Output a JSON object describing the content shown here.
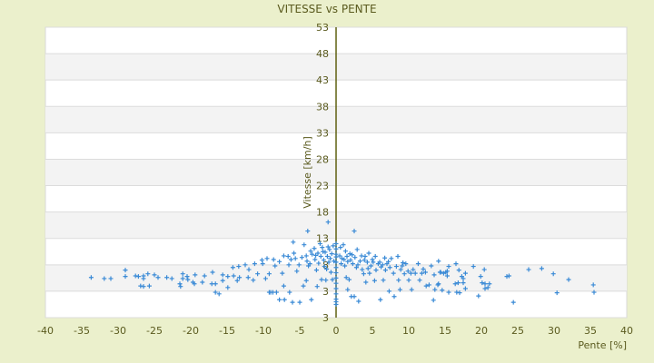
{
  "chart_data": {
    "type": "scatter",
    "title": "VITESSE vs PENTE",
    "xlabel": "Pente [%]",
    "ylabel": "Vitesse [km/h]",
    "xlim": [
      -40,
      40
    ],
    "ylim": [
      -2,
      53
    ],
    "x_ticks": [
      "-40",
      "-35",
      "-30",
      "-25",
      "-20",
      "-15",
      "-10",
      "-5",
      "0",
      "5",
      "10",
      "15",
      "20",
      "25",
      "30",
      "35",
      "40"
    ],
    "y_ticks": [
      "53",
      "48",
      "43",
      "38",
      "33",
      "28",
      "23",
      "18",
      "13",
      "8",
      "3",
      "3"
    ],
    "grid": true,
    "colors": {
      "background": "#ebf0cc",
      "plot": "#ffffff",
      "band": "#f3f3f3",
      "marker": "#3a8ad6",
      "axis": "#5a5a1e"
    },
    "marker": "plus",
    "points": [
      [
        14.1,
        8.7
      ],
      [
        15.5,
        7.7
      ],
      [
        16.5,
        8.2
      ],
      [
        16.9,
        7.0
      ],
      [
        18.9,
        7.7
      ],
      [
        20.4,
        7.1
      ],
      [
        19.9,
        5.8
      ],
      [
        17.3,
        5.8
      ],
      [
        17.5,
        5.4
      ],
      [
        17.8,
        6.4
      ],
      [
        16.4,
        4.4
      ],
      [
        16.8,
        4.6
      ],
      [
        17.5,
        4.6
      ],
      [
        17.8,
        3.5
      ],
      [
        17.0,
        2.7
      ],
      [
        15.5,
        2.8
      ],
      [
        14.6,
        3.2
      ],
      [
        20.1,
        4.6
      ],
      [
        20.5,
        4.4
      ],
      [
        21.1,
        4.4
      ],
      [
        20.5,
        3.5
      ],
      [
        20.9,
        3.7
      ],
      [
        19.6,
        2.1
      ],
      [
        23.5,
        5.8
      ],
      [
        23.8,
        5.9
      ],
      [
        24.4,
        0.9
      ],
      [
        26.5,
        7.1
      ],
      [
        28.3,
        7.3
      ],
      [
        29.9,
        6.3
      ],
      [
        30.4,
        2.7
      ],
      [
        32.0,
        5.2
      ],
      [
        35.4,
        4.2
      ],
      [
        35.5,
        2.8
      ],
      [
        15.3,
        6.8
      ],
      [
        15.3,
        5.9
      ],
      [
        14.8,
        6.4
      ],
      [
        14.3,
        6.6
      ],
      [
        14.0,
        4.2
      ],
      [
        14.1,
        4.4
      ],
      [
        -33.7,
        5.6
      ],
      [
        -31.9,
        5.4
      ],
      [
        -31.0,
        5.4
      ],
      [
        -29.0,
        7.0
      ],
      [
        -29.0,
        5.8
      ],
      [
        -27.6,
        5.9
      ],
      [
        -27.2,
        5.8
      ],
      [
        -26.5,
        5.9
      ],
      [
        -26.5,
        5.4
      ],
      [
        -26.9,
        4.0
      ],
      [
        -26.5,
        3.9
      ],
      [
        -25.9,
        6.3
      ],
      [
        -25.7,
        4.0
      ],
      [
        -25.0,
        6.1
      ],
      [
        -24.5,
        5.6
      ],
      [
        -23.3,
        5.6
      ],
      [
        -22.6,
        5.4
      ],
      [
        -21.5,
        4.4
      ],
      [
        -21.4,
        3.9
      ],
      [
        -21.1,
        6.3
      ],
      [
        -21.1,
        5.4
      ],
      [
        -20.5,
        5.8
      ],
      [
        -20.4,
        5.2
      ],
      [
        -19.7,
        4.7
      ],
      [
        -19.5,
        4.4
      ],
      [
        -19.4,
        6.1
      ],
      [
        -18.4,
        4.7
      ],
      [
        -18.1,
        5.9
      ],
      [
        -17.0,
        6.6
      ],
      [
        -17.1,
        4.4
      ],
      [
        -16.6,
        4.4
      ],
      [
        -16.6,
        2.8
      ],
      [
        -16.1,
        2.5
      ],
      [
        -15.6,
        6.1
      ],
      [
        -15.6,
        5.0
      ],
      [
        -14.9,
        5.8
      ],
      [
        -14.9,
        3.7
      ],
      [
        -14.2,
        7.5
      ],
      [
        -14.1,
        5.9
      ],
      [
        -13.6,
        5.0
      ],
      [
        -13.4,
        7.7
      ],
      [
        -13.3,
        5.6
      ],
      [
        -12.5,
        8.0
      ],
      [
        -12.1,
        5.6
      ],
      [
        -12.0,
        7.1
      ],
      [
        -11.4,
        5.1
      ],
      [
        -11.2,
        8.2
      ],
      [
        -10.8,
        6.3
      ],
      [
        -10.2,
        8.9
      ],
      [
        -10.1,
        8.2
      ],
      [
        -9.7,
        5.4
      ],
      [
        -9.5,
        9.2
      ],
      [
        -9.2,
        6.3
      ],
      [
        -9.2,
        2.8
      ],
      [
        -9.0,
        2.8
      ],
      [
        -8.7,
        2.8
      ],
      [
        -8.6,
        9.0
      ],
      [
        -8.2,
        2.8
      ],
      [
        -8.4,
        7.8
      ],
      [
        -7.8,
        1.4
      ],
      [
        -7.2,
        9.7
      ],
      [
        -7.2,
        4.0
      ],
      [
        -7.1,
        1.4
      ],
      [
        -7.4,
        6.4
      ],
      [
        -6.6,
        9.6
      ],
      [
        -6.5,
        8.0
      ],
      [
        -6.4,
        2.8
      ],
      [
        -6.0,
        0.9
      ],
      [
        -5.9,
        12.3
      ],
      [
        -5.8,
        10.2
      ],
      [
        -5.6,
        9.2
      ],
      [
        -5.4,
        6.8
      ],
      [
        -5.1,
        8.0
      ],
      [
        -5.0,
        0.9
      ],
      [
        -4.5,
        4.0
      ],
      [
        -4.4,
        11.8
      ],
      [
        -4.1,
        9.7
      ],
      [
        -4.1,
        5.0
      ],
      [
        -4.0,
        8.7
      ],
      [
        -3.9,
        14.4
      ],
      [
        -3.8,
        7.8
      ],
      [
        -3.5,
        10.6
      ],
      [
        -3.4,
        1.4
      ],
      [
        -3.0,
        11.1
      ],
      [
        -2.9,
        9.0
      ],
      [
        -2.7,
        7.0
      ],
      [
        -2.6,
        3.9
      ],
      [
        -2.5,
        10.2
      ],
      [
        -2.4,
        8.3
      ],
      [
        -2.2,
        12.0
      ],
      [
        -2.1,
        9.6
      ],
      [
        -2.0,
        5.2
      ],
      [
        -1.9,
        11.3
      ],
      [
        -1.7,
        8.9
      ],
      [
        -1.6,
        7.7
      ],
      [
        -1.5,
        10.4
      ],
      [
        -1.4,
        5.1
      ],
      [
        -1.2,
        9.6
      ],
      [
        -1.1,
        16.1
      ],
      [
        -1.1,
        11.4
      ],
      [
        -1.0,
        8.5
      ],
      [
        -0.9,
        10.9
      ],
      [
        -0.8,
        9.2
      ],
      [
        -0.6,
        10.1
      ],
      [
        -0.5,
        5.2
      ],
      [
        -0.4,
        11.6
      ],
      [
        -0.3,
        8.7
      ],
      [
        -3.3,
        10.0
      ],
      [
        -2.8,
        9.8
      ],
      [
        -1.8,
        10.5
      ],
      [
        -4.7,
        9.4
      ],
      [
        -6.2,
        9.0
      ],
      [
        -7.8,
        8.6
      ],
      [
        -3.6,
        8.2
      ],
      [
        -1.3,
        7.2
      ],
      [
        -0.7,
        6.6
      ],
      [
        0,
        12.0
      ],
      [
        0,
        11.0
      ],
      [
        0,
        10.0
      ],
      [
        0,
        9.5
      ],
      [
        0,
        8.5
      ],
      [
        0,
        7.5
      ],
      [
        0,
        6.5
      ],
      [
        0,
        5.5
      ],
      [
        0,
        4.5
      ],
      [
        0,
        3.5
      ],
      [
        0,
        2.5
      ],
      [
        0,
        1.5
      ],
      [
        0,
        1.0
      ],
      [
        0,
        0.5
      ],
      [
        0.5,
        9.7
      ],
      [
        0.6,
        11.3
      ],
      [
        0.8,
        9.2
      ],
      [
        1.0,
        11.8
      ],
      [
        1.2,
        7.8
      ],
      [
        1.3,
        10.6
      ],
      [
        1.4,
        5.6
      ],
      [
        1.5,
        9.6
      ],
      [
        1.6,
        3.3
      ],
      [
        1.8,
        5.2
      ],
      [
        1.9,
        10.1
      ],
      [
        2.0,
        8.9
      ],
      [
        2.1,
        2.0
      ],
      [
        2.3,
        8.2
      ],
      [
        2.5,
        14.4
      ],
      [
        2.5,
        2.0
      ],
      [
        2.6,
        9.4
      ],
      [
        2.8,
        7.5
      ],
      [
        2.9,
        10.9
      ],
      [
        3.1,
        1.1
      ],
      [
        3.3,
        8.7
      ],
      [
        3.5,
        9.7
      ],
      [
        3.6,
        7.1
      ],
      [
        3.8,
        6.3
      ],
      [
        4.0,
        9.6
      ],
      [
        4.1,
        4.7
      ],
      [
        4.3,
        8.5
      ],
      [
        4.5,
        10.2
      ],
      [
        4.6,
        6.4
      ],
      [
        4.8,
        7.8
      ],
      [
        5.1,
        8.5
      ],
      [
        5.3,
        5.0
      ],
      [
        5.4,
        9.6
      ],
      [
        5.5,
        7.0
      ],
      [
        5.8,
        8.2
      ],
      [
        6.0,
        8.5
      ],
      [
        6.1,
        1.4
      ],
      [
        6.4,
        8.0
      ],
      [
        6.5,
        5.1
      ],
      [
        6.8,
        7.0
      ],
      [
        7.0,
        8.2
      ],
      [
        7.3,
        3.0
      ],
      [
        7.4,
        7.5
      ],
      [
        7.6,
        9.2
      ],
      [
        7.9,
        6.4
      ],
      [
        8.0,
        2.0
      ],
      [
        8.3,
        7.7
      ],
      [
        8.5,
        9.6
      ],
      [
        8.6,
        5.1
      ],
      [
        8.8,
        3.3
      ],
      [
        8.9,
        7.1
      ],
      [
        9.1,
        7.8
      ],
      [
        9.4,
        6.3
      ],
      [
        9.6,
        8.2
      ],
      [
        9.9,
        6.8
      ],
      [
        10.0,
        5.1
      ],
      [
        10.3,
        6.4
      ],
      [
        10.4,
        3.3
      ],
      [
        10.6,
        7.1
      ],
      [
        10.9,
        6.4
      ],
      [
        11.3,
        8.2
      ],
      [
        11.5,
        5.1
      ],
      [
        11.8,
        6.4
      ],
      [
        12.3,
        6.6
      ],
      [
        12.4,
        4.0
      ],
      [
        12.8,
        4.2
      ],
      [
        13.1,
        7.8
      ],
      [
        13.4,
        1.3
      ],
      [
        13.5,
        6.1
      ],
      [
        13.6,
        3.3
      ],
      [
        14.4,
        6.6
      ],
      [
        15.1,
        6.6
      ],
      [
        16.6,
        2.8
      ],
      [
        1.1,
        9.0
      ],
      [
        2.2,
        9.9
      ],
      [
        3.0,
        8.0
      ],
      [
        4.4,
        7.3
      ],
      [
        5.0,
        9.0
      ],
      [
        6.2,
        7.6
      ],
      [
        7.2,
        8.6
      ],
      [
        0.7,
        8.2
      ],
      [
        1.6,
        8.6
      ],
      [
        3.9,
        8.9
      ],
      [
        6.7,
        9.3
      ],
      [
        9.2,
        8.4
      ],
      [
        12.0,
        7.2
      ]
    ]
  }
}
